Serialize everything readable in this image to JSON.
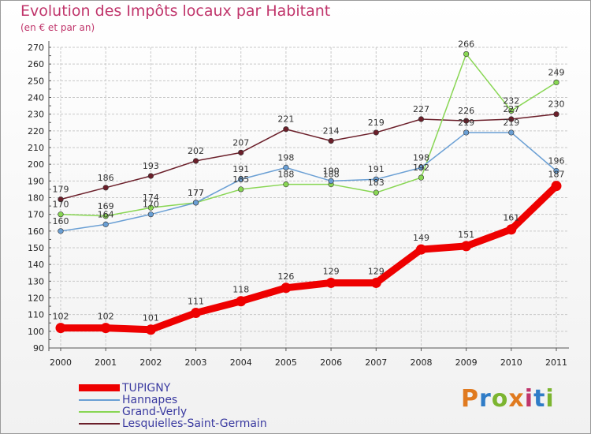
{
  "header": {
    "title": "Evolution des Impôts locaux par Habitant",
    "subtitle": "(en € et par an)"
  },
  "logo": {
    "text": "Proxiti",
    "colors": [
      "#e07a1f",
      "#2f7cc7",
      "#7cb530",
      "#e07a1f",
      "#c0356b",
      "#2f7cc7",
      "#7cb530"
    ]
  },
  "chart_data": {
    "type": "line",
    "title": "Evolution des Impôts locaux par Habitant",
    "subtitle": "(en € et par an)",
    "x": [
      "2000",
      "2001",
      "2002",
      "2003",
      "2004",
      "2005",
      "2006",
      "2007",
      "2008",
      "2009",
      "2010",
      "2011"
    ],
    "ylim": [
      90,
      270
    ],
    "yticks": [
      90,
      100,
      110,
      120,
      130,
      140,
      150,
      160,
      170,
      180,
      190,
      200,
      210,
      220,
      230,
      240,
      250,
      260,
      270
    ],
    "grid": true,
    "legend_position": "bottom-left",
    "series": [
      {
        "name": "Lesquielles-Saint-Germain",
        "color": "#6b1f2a",
        "values": [
          179,
          186,
          193,
          202,
          207,
          221,
          214,
          219,
          227,
          226,
          227,
          230
        ]
      },
      {
        "name": "Grand-Verly",
        "color": "#88d653",
        "values": [
          170,
          169,
          174,
          177,
          185,
          188,
          188,
          183,
          192,
          266,
          232,
          249
        ]
      },
      {
        "name": "Hannapes",
        "color": "#6a9fd4",
        "values": [
          160,
          164,
          170,
          177,
          191,
          198,
          190,
          191,
          198,
          219,
          219,
          196
        ]
      },
      {
        "name": "TUPIGNY",
        "color": "#ee0000",
        "values": [
          102,
          102,
          101,
          111,
          118,
          126,
          129,
          129,
          149,
          151,
          161,
          187
        ]
      }
    ],
    "legend": [
      "TUPIGNY",
      "Hannapes",
      "Grand-Verly",
      "Lesquielles-Saint-Germain"
    ]
  }
}
